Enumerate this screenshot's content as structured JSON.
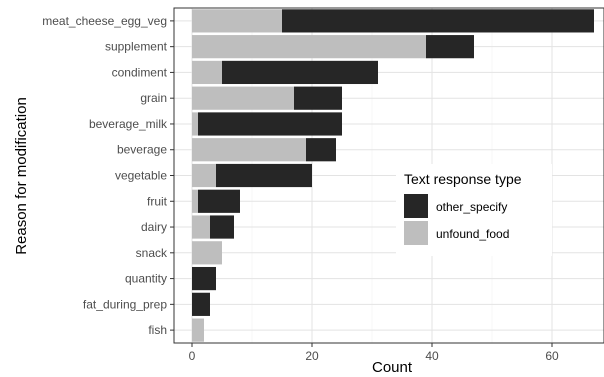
{
  "chart_data": {
    "type": "bar",
    "orientation": "horizontal",
    "stacked": true,
    "categories": [
      "meat_cheese_egg_veg",
      "supplement",
      "condiment",
      "grain",
      "beverage_milk",
      "beverage",
      "vegetable",
      "fruit",
      "dairy",
      "snack",
      "quantity",
      "fat_during_prep",
      "fish"
    ],
    "series": [
      {
        "name": "other_specify",
        "color": "#262626",
        "values": [
          52,
          8,
          26,
          8,
          24,
          5,
          16,
          7,
          4,
          0,
          4,
          3,
          0
        ]
      },
      {
        "name": "unfound_food",
        "color": "#bebebe",
        "values": [
          15,
          39,
          5,
          17,
          1,
          19,
          4,
          1,
          3,
          5,
          0,
          0,
          2
        ]
      }
    ],
    "xlabel": "Count",
    "ylabel": "Reason for modification",
    "xlim": [
      0,
      70
    ],
    "xticks": [
      0,
      20,
      40,
      60
    ],
    "grid": true,
    "legend": {
      "title": "Text response type",
      "position": "right-inside",
      "entries": [
        "other_specify",
        "unfound_food"
      ]
    }
  }
}
